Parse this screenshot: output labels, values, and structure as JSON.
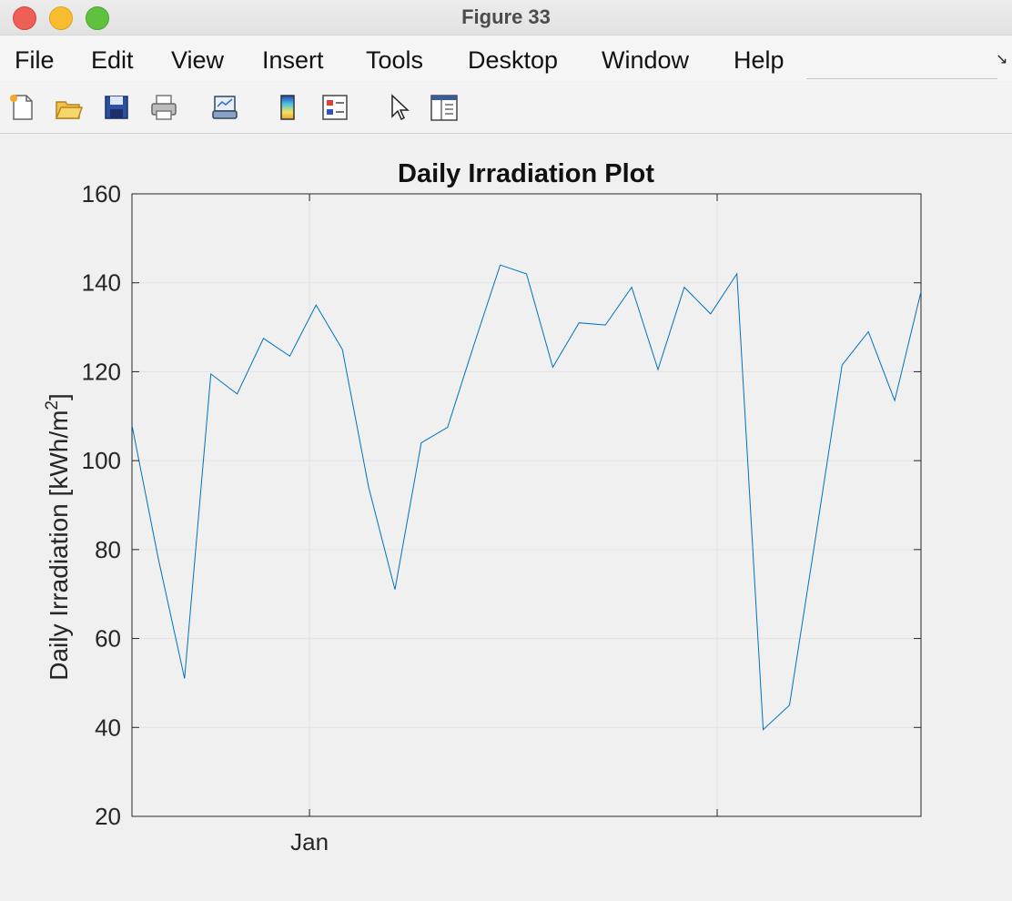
{
  "window": {
    "title": "Figure 33",
    "controls": [
      "close-icon",
      "minimize-icon",
      "maximize-icon"
    ]
  },
  "menu": {
    "items": [
      "File",
      "Edit",
      "View",
      "Insert",
      "Tools",
      "Desktop",
      "Window",
      "Help"
    ]
  },
  "toolbar": {
    "icons": [
      "new-figure-icon",
      "open-file-icon",
      "save-icon",
      "print-icon",
      "link-plot-icon",
      "colorbar-icon",
      "legend-icon",
      "pointer-icon",
      "property-inspector-icon"
    ]
  },
  "chart_data": {
    "type": "line",
    "title": "Daily Irradiation Plot",
    "ylabel_main": "Daily Irradiation [kWh/m",
    "ylabel_sup": "2",
    "ylabel_tail": "]",
    "xlabel": "",
    "ylim": [
      20,
      160
    ],
    "yticks": [
      20,
      40,
      60,
      80,
      100,
      120,
      140,
      160
    ],
    "x_tick_labels": [
      {
        "label": "Jan",
        "x": 14.5
      },
      {
        "label": "",
        "x": 45.5
      }
    ],
    "xlim": [
      1,
      61
    ],
    "grid": true,
    "line_color": "#0072bd",
    "series": [
      {
        "x": [
          1,
          3,
          5,
          7,
          9,
          11,
          13,
          15,
          17,
          19,
          21,
          23,
          25,
          27,
          29,
          31,
          33,
          35,
          37,
          39,
          41,
          43,
          45,
          47,
          49,
          51,
          53,
          55,
          57,
          59,
          61
        ],
        "values": [
          108,
          78,
          51,
          119.5,
          115,
          127.5,
          123.5,
          135,
          125,
          94,
          71,
          104,
          107.5,
          126,
          144,
          142,
          121,
          131,
          130.5,
          139,
          120.5,
          139,
          133,
          142,
          39.5,
          45,
          83,
          121.5,
          129,
          113.5,
          138
        ]
      }
    ]
  }
}
